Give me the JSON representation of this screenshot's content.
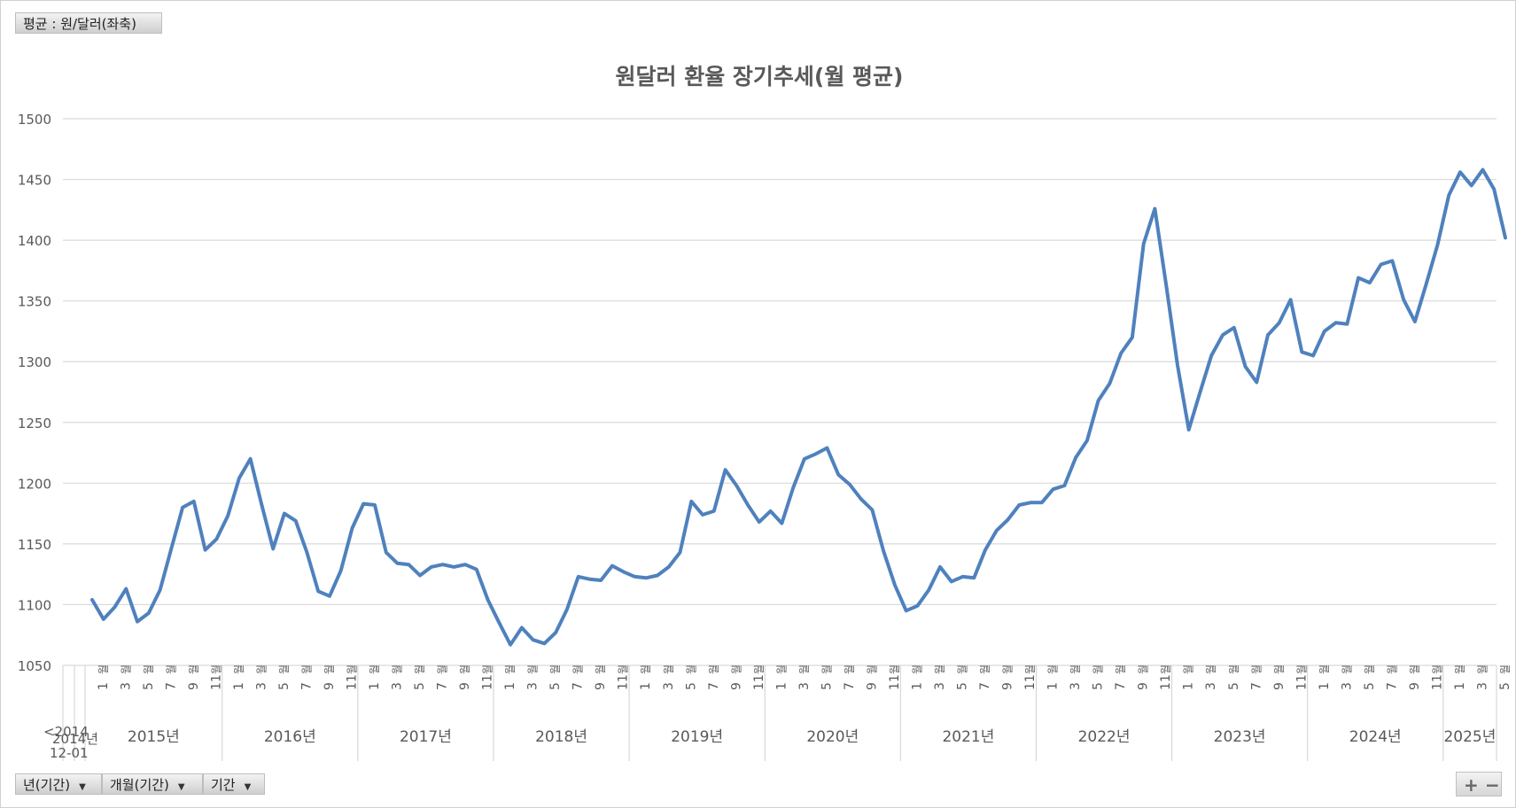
{
  "filter_tag": "평균 : 원/달러(좌축)",
  "axis_buttons": [
    "년(기간)",
    "개월(기간)",
    "기간"
  ],
  "zoom": {
    "plus": "+",
    "minus": "−"
  },
  "colors": {
    "line": "#4f81bd",
    "grid": "#d9d9d9",
    "text": "#595959"
  },
  "chart_data": {
    "type": "line",
    "title": "원달러 환율 장기추세(월 평균)",
    "ylim": [
      1050,
      1500
    ],
    "yticks": [
      1050,
      1100,
      1150,
      1200,
      1250,
      1300,
      1350,
      1400,
      1450,
      1500
    ],
    "grid": true,
    "year_labels": [
      "<2014",
      "2015년",
      "2016년",
      "2017년",
      "2018년",
      "2019년",
      "2020년",
      "2021년",
      "2022년",
      "2023년",
      "2024년",
      "2025년"
    ],
    "first_label_sub": "12-01",
    "first_label_tail": "2014년",
    "month_labels": [
      "1",
      "3",
      "5",
      "7",
      "9",
      "11"
    ],
    "month_label_2025": [
      "1",
      "3",
      "5"
    ],
    "month_unit": "월",
    "series": [
      {
        "values": [
          1104,
          1088,
          1098,
          1113,
          1086,
          1093,
          1112,
          1146,
          1180,
          1185,
          1145,
          1154,
          1173,
          1204,
          1220,
          1182,
          1146,
          1175,
          1169,
          1143,
          1111,
          1107,
          1128,
          1163,
          1183,
          1182,
          1143,
          1134,
          1133,
          1124,
          1131,
          1133,
          1131,
          1133,
          1129,
          1104,
          1085,
          1067,
          1081,
          1071,
          1068,
          1077,
          1096,
          1123,
          1121,
          1120,
          1132,
          1127,
          1123,
          1122,
          1124,
          1131,
          1143,
          1185,
          1174,
          1177,
          1211,
          1198,
          1182,
          1168,
          1177,
          1167,
          1196,
          1220,
          1224,
          1229,
          1207,
          1199,
          1187,
          1178,
          1144,
          1116,
          1095,
          1099,
          1112,
          1131,
          1119,
          1123,
          1122,
          1145,
          1161,
          1170,
          1182,
          1184,
          1184,
          1195,
          1198,
          1221,
          1235,
          1268,
          1282,
          1307,
          1320,
          1397,
          1426,
          1363,
          1297,
          1244,
          1275,
          1305,
          1322,
          1328,
          1296,
          1283,
          1322,
          1332,
          1351,
          1308,
          1305,
          1325,
          1332,
          1331,
          1369,
          1365,
          1380,
          1383,
          1351,
          1333,
          1364,
          1396,
          1437,
          1456,
          1445,
          1458,
          1442,
          1402
        ]
      }
    ]
  }
}
